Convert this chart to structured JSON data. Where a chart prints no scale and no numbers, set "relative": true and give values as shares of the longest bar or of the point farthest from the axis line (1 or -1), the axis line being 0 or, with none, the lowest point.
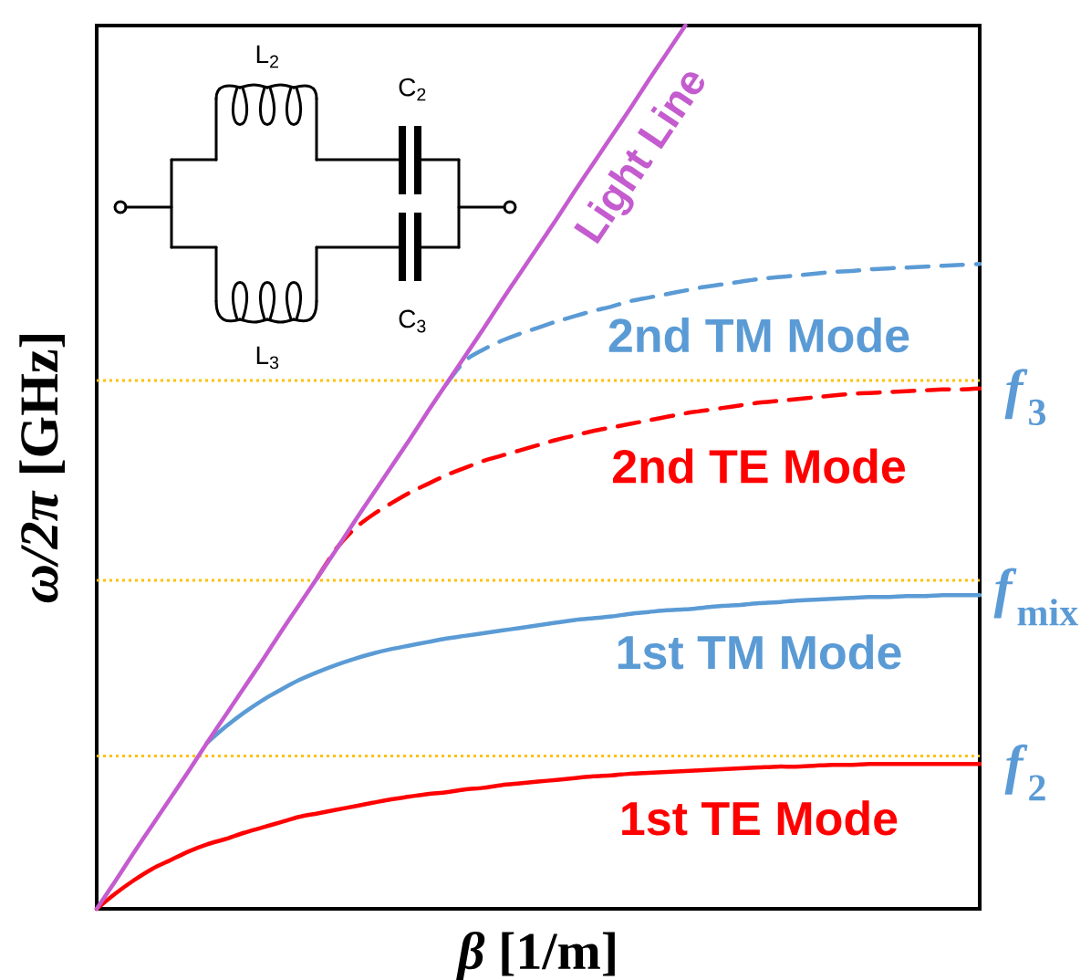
{
  "chart_data": {
    "type": "line",
    "relative": true,
    "xlabel": "*β* [1/m]",
    "ylabel": "*ω/2π* [GHz]",
    "categories": [
      null,
      null,
      null,
      null,
      null,
      null,
      null,
      null,
      null,
      null,
      null,
      null,
      null,
      null,
      null,
      null,
      null,
      null,
      null,
      null,
      null,
      null,
      null,
      null,
      null,
      null,
      null,
      null,
      null,
      null,
      null,
      null,
      null,
      null,
      null,
      null,
      null,
      null,
      null,
      null,
      null,
      null,
      null,
      null,
      null,
      null,
      null,
      null,
      null
    ],
    "series": [
      {
        "name": "1st TE Mode",
        "color": "#ff0000",
        "line_style": "solid",
        "values": [
          0,
          0.017,
          0.032,
          0.045,
          0.055,
          0.065,
          0.073,
          0.079,
          0.086,
          0.092,
          0.098,
          0.104,
          0.108,
          0.112,
          0.116,
          0.12,
          0.124,
          0.127,
          0.13,
          0.132,
          0.135,
          0.137,
          0.14,
          0.142,
          0.144,
          0.146,
          0.148,
          0.15,
          0.151,
          0.153,
          0.154,
          0.155,
          0.156,
          0.157,
          0.158,
          0.159,
          0.16,
          0.161,
          0.161,
          0.162,
          0.163,
          0.163,
          0.164,
          0.164,
          0.164,
          0.164,
          0.164,
          0.164,
          0.164
        ]
      },
      {
        "name": "1st TM Mode",
        "color": "#5b9bd5",
        "line_style": "solid",
        "values": [
          null,
          null,
          null,
          null,
          null,
          null,
          0.188,
          0.206,
          0.222,
          0.236,
          0.248,
          0.259,
          0.268,
          0.276,
          0.283,
          0.289,
          0.294,
          0.298,
          0.302,
          0.306,
          0.309,
          0.312,
          0.315,
          0.318,
          0.321,
          0.324,
          0.327,
          0.329,
          0.331,
          0.334,
          0.336,
          0.338,
          0.339,
          0.341,
          0.343,
          0.344,
          0.346,
          0.347,
          0.349,
          0.35,
          0.351,
          0.352,
          0.353,
          0.353,
          0.354,
          0.354,
          0.355,
          0.355,
          0.355
        ]
      },
      {
        "name": "2nd TE Mode",
        "color": "#ff0000",
        "line_style": "dashed",
        "values": [
          null,
          null,
          null,
          null,
          null,
          null,
          null,
          null,
          null,
          null,
          null,
          null,
          0.375,
          0.407,
          0.43,
          0.446,
          0.459,
          0.471,
          0.481,
          0.491,
          0.499,
          0.507,
          0.513,
          0.519,
          0.525,
          0.531,
          0.536,
          0.541,
          0.545,
          0.549,
          0.553,
          0.557,
          0.561,
          0.564,
          0.567,
          0.57,
          0.573,
          0.575,
          0.577,
          0.579,
          0.581,
          0.583,
          0.584,
          0.585,
          0.586,
          0.587,
          0.588,
          0.588,
          0.589
        ]
      },
      {
        "name": "2nd TM Mode",
        "color": "#5b9bd5",
        "line_style": "dashed",
        "values": [
          null,
          null,
          null,
          null,
          null,
          null,
          null,
          null,
          null,
          null,
          null,
          null,
          null,
          null,
          null,
          null,
          null,
          null,
          null,
          0.594,
          0.62,
          0.633,
          0.643,
          0.651,
          0.658,
          0.665,
          0.671,
          0.677,
          0.682,
          0.688,
          0.692,
          0.696,
          0.7,
          0.704,
          0.707,
          0.71,
          0.713,
          0.715,
          0.717,
          0.719,
          0.721,
          0.722,
          0.724,
          0.725,
          0.726,
          0.727,
          0.728,
          0.729,
          0.73
        ]
      },
      {
        "name": "Light Line",
        "color": "#c45ccf",
        "line_style": "solid",
        "values": [
          0,
          0.031,
          0.063,
          0.094,
          0.125,
          0.156,
          0.188,
          0.219,
          0.25,
          0.281,
          0.313,
          0.344,
          0.375,
          0.406,
          0.438,
          0.469,
          0.5,
          0.531,
          0.563,
          0.594,
          0.625,
          0.656,
          0.688,
          0.719,
          0.75,
          0.781,
          0.813,
          0.844,
          0.875,
          0.906,
          0.938,
          0.969,
          1,
          null,
          null,
          null,
          null,
          null,
          null,
          null,
          null,
          null,
          null,
          null,
          null,
          null,
          null,
          null,
          null
        ]
      }
    ],
    "ref_lines": [
      {
        "axis": "y",
        "value": 0.598,
        "label": "*f*$_{3}$",
        "color": "#ffc000",
        "line_style": "dotted"
      },
      {
        "axis": "y",
        "value": 0.372,
        "label": "*f*$_{mix}$",
        "color": "#ffc000",
        "line_style": "dotted"
      },
      {
        "axis": "y",
        "value": 0.173,
        "label": "*f*$_{2}$",
        "color": "#ffc000",
        "line_style": "dotted"
      }
    ],
    "annotations": [
      "L$_{2}$",
      "C$_{2}$",
      "C$_{3}$",
      "L$_{3}$"
    ]
  }
}
